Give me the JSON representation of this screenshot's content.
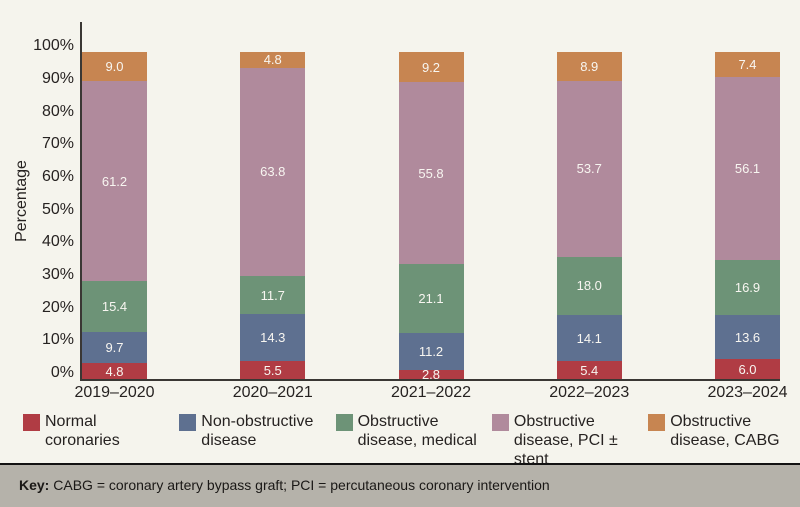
{
  "colors": {
    "background": "#f5f4ed",
    "axis": "#3a3734",
    "text": "#262221",
    "bar_value_label": "#f8f6f1",
    "footer_background": "#b5b2aa",
    "footer_border": "#121212"
  },
  "chart_data": {
    "type": "bar",
    "stacked": true,
    "title": "",
    "xlabel": "",
    "ylabel": "Percentage",
    "ylim": [
      0,
      100
    ],
    "y_ticks": [
      "0%",
      "10%",
      "20%",
      "30%",
      "40%",
      "50%",
      "60%",
      "70%",
      "80%",
      "90%",
      "100%"
    ],
    "grid": false,
    "legend_position": "bottom",
    "value_label_format": "one_decimal",
    "categories": [
      "2019–2020",
      "2020–2021",
      "2021–2022",
      "2022–2023",
      "2023–2024"
    ],
    "series": [
      {
        "name": "Normal coronaries",
        "legend_lines": [
          "Normal",
          "coronaries"
        ],
        "color": "#b03c44",
        "values": [
          4.8,
          5.5,
          2.8,
          5.4,
          6.0
        ]
      },
      {
        "name": "Non-obstructive disease",
        "legend_lines": [
          "Non-obstructive",
          "disease"
        ],
        "color": "#5e7090",
        "values": [
          9.7,
          14.3,
          11.2,
          14.1,
          13.6
        ]
      },
      {
        "name": "Obstructive disease, medical",
        "legend_lines": [
          "Obstructive",
          "disease, medical"
        ],
        "color": "#6d9377",
        "values": [
          15.4,
          11.7,
          21.1,
          18.0,
          16.9
        ]
      },
      {
        "name": "Obstructive disease, PCI ± stent",
        "legend_lines": [
          "Obstructive",
          "disease, PCI ± stent"
        ],
        "color": "#b08a9c",
        "values": [
          61.2,
          63.8,
          55.8,
          53.7,
          56.1
        ]
      },
      {
        "name": "Obstructive disease, CABG",
        "legend_lines": [
          "Obstructive",
          "disease, CABG"
        ],
        "color": "#c78551",
        "values": [
          9.0,
          4.8,
          9.2,
          8.9,
          7.4
        ]
      }
    ]
  },
  "footer": {
    "key_label": "Key:",
    "key_text": " CABG = coronary artery bypass graft; PCI = percutaneous coronary intervention"
  }
}
